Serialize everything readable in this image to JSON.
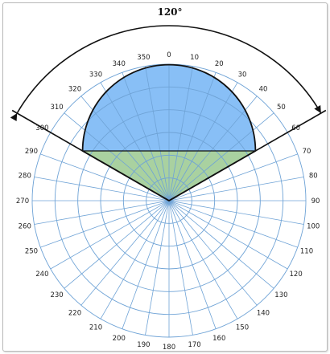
{
  "angle_label": "120°",
  "colors": {
    "grid": "#6fa3d6",
    "lobe_fill": "#88bff6",
    "side_fill": "#a9d1a0",
    "outline": "#111111",
    "label": "#222222"
  },
  "polar": {
    "ring_count": 6,
    "spoke_step_deg": 10,
    "angle_labels": [
      "0",
      "10",
      "20",
      "30",
      "40",
      "50",
      "60",
      "70",
      "80",
      "90",
      "100",
      "110",
      "120",
      "130",
      "140",
      "150",
      "160",
      "170",
      "180",
      "190",
      "200",
      "210",
      "220",
      "230",
      "240",
      "250",
      "260",
      "270",
      "280",
      "290",
      "300",
      "310",
      "320",
      "330",
      "340",
      "350"
    ]
  },
  "coverage": {
    "beam_width_deg": 120,
    "left_edge_deg": 300,
    "right_edge_deg": 60
  }
}
